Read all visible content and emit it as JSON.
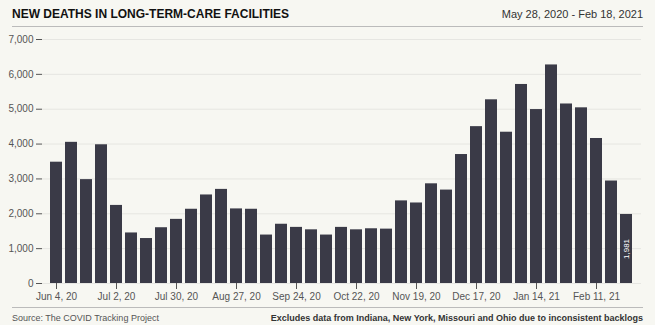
{
  "chart_data": {
    "type": "bar",
    "title": "NEW DEATHS IN LONG-TERM-CARE FACILITIES",
    "subtitle": "May 28, 2020 - Feb 18, 2021",
    "source": "Source: The COVID Tracking Project",
    "note": "Excludes data from Indiana, New York, Missouri and Ohio due to inconsistent backlogs",
    "categories": [
      "Jun 4, 20",
      null,
      null,
      null,
      "Jul 2, 20",
      null,
      null,
      null,
      "Jul 30, 20",
      null,
      null,
      null,
      "Aug 27, 20",
      null,
      null,
      null,
      "Sep 24, 20",
      null,
      null,
      null,
      "Oct 22, 20",
      null,
      null,
      null,
      "Nov 19, 20",
      null,
      null,
      null,
      "Dec 17, 20",
      null,
      null,
      null,
      "Jan 14, 21",
      null,
      null,
      null,
      "Feb 11, 21",
      null,
      null
    ],
    "values": [
      3480,
      4050,
      2980,
      3980,
      2240,
      1450,
      1290,
      1600,
      1840,
      2130,
      2540,
      2700,
      2140,
      2130,
      1390,
      1700,
      1610,
      1540,
      1390,
      1610,
      1540,
      1570,
      1560,
      2370,
      2310,
      2860,
      2680,
      3700,
      4500,
      5270,
      4340,
      5710,
      4990,
      6270,
      5150,
      5040,
      4160,
      2940,
      1981
    ],
    "value_labels": [
      null,
      null,
      null,
      null,
      null,
      null,
      null,
      null,
      null,
      null,
      null,
      null,
      null,
      null,
      null,
      null,
      null,
      null,
      null,
      null,
      null,
      null,
      null,
      null,
      null,
      null,
      null,
      null,
      null,
      null,
      null,
      null,
      null,
      null,
      null,
      null,
      null,
      null,
      "1,981"
    ],
    "data_labels": true,
    "color": "#3a3a47",
    "ylim": [
      0,
      7000
    ],
    "yticks": [
      0,
      {
        "value": 1000,
        "label": "1,000"
      },
      {
        "value": 2000,
        "label": "2,000"
      },
      {
        "value": 3000,
        "label": "3,000"
      },
      {
        "value": 4000,
        "label": "4,000"
      },
      {
        "value": 5000,
        "label": "5,000"
      },
      {
        "value": 6000,
        "label": "6,000"
      },
      {
        "value": 7000,
        "label": "7,000"
      }
    ],
    "grid": true
  }
}
